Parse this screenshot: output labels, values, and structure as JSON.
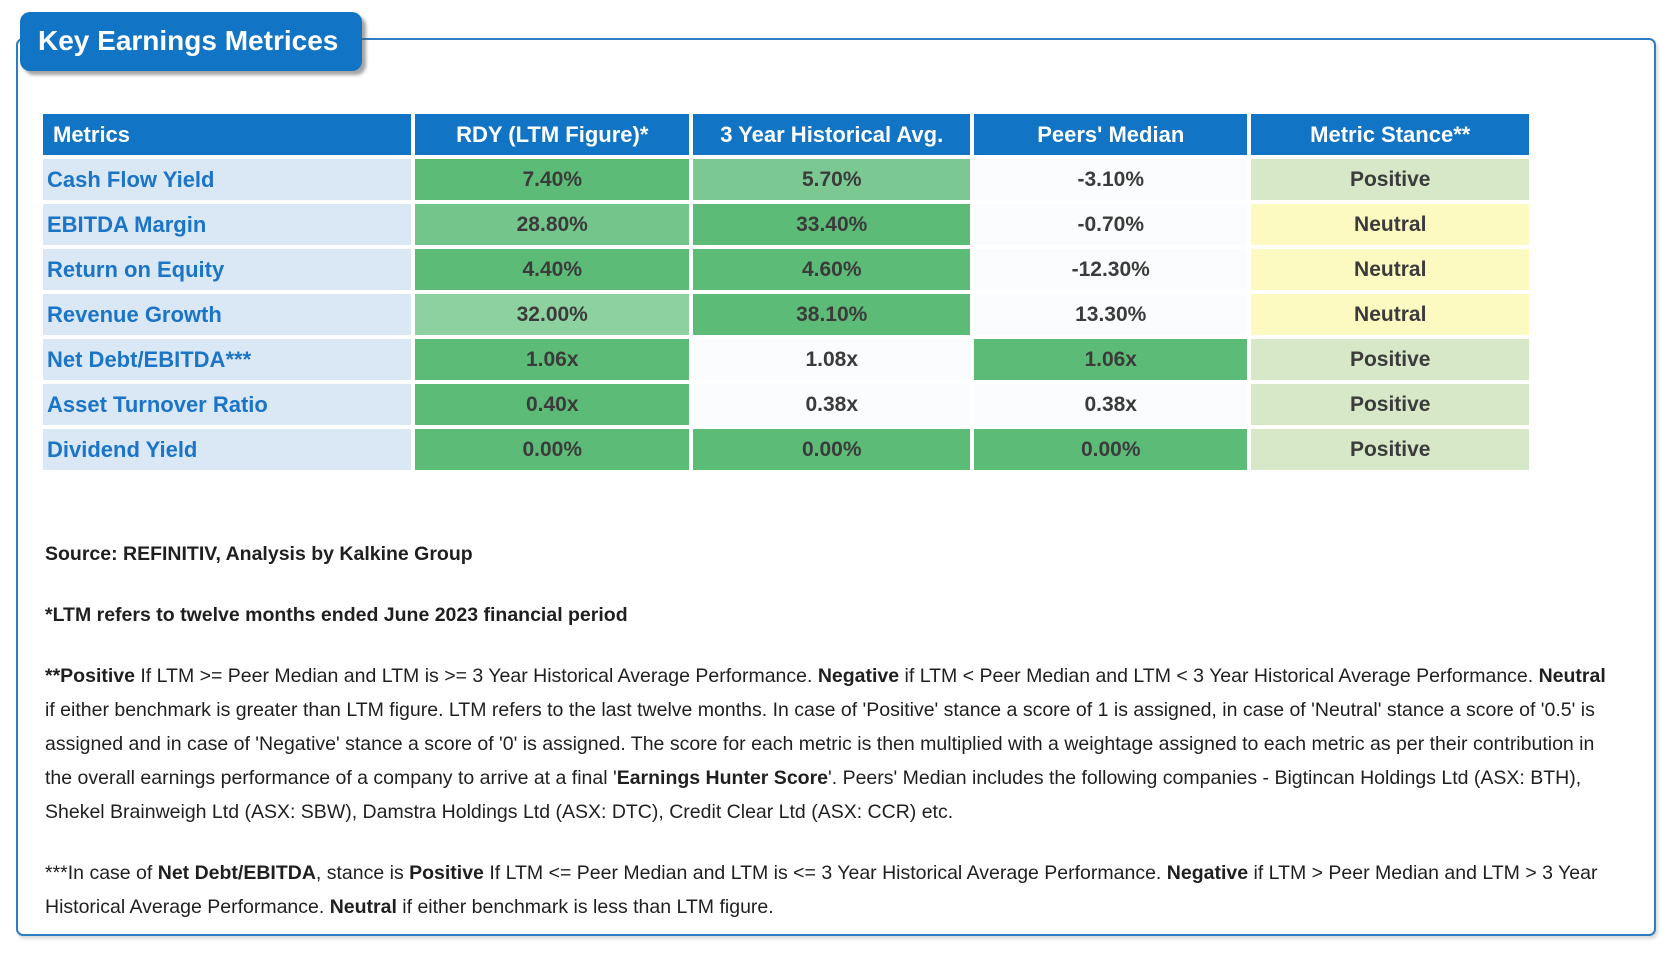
{
  "title": "Key Earnings Metrices",
  "colors": {
    "headerBg": "#1274c5",
    "labelBg": "#dae8f6",
    "labelText": "#1b74c6",
    "border": "#2e7cc1",
    "greenDark": "#5cbb76",
    "greenMid": "#74c58b",
    "greenLight": "#7cc893",
    "greenLighter": "#8ed1a1",
    "plain": "#fbfcfd",
    "stancePositive": "#d6e8c8",
    "stanceNeutral": "#fdfac1"
  },
  "table": {
    "headers": [
      "Metrics",
      "RDY (LTM Figure)*",
      "3 Year Historical Avg.",
      "Peers' Median",
      "Metric Stance**"
    ],
    "rows": [
      {
        "metric": "Cash Flow Yield",
        "cells": [
          {
            "text": "7.40%",
            "fill": "greenDark"
          },
          {
            "text": "5.70%",
            "fill": "greenLight"
          },
          {
            "text": "-3.10%",
            "fill": "plain"
          },
          {
            "text": "Positive",
            "fill": "stancePositive"
          }
        ]
      },
      {
        "metric": "EBITDA Margin",
        "cells": [
          {
            "text": "28.80%",
            "fill": "greenMid"
          },
          {
            "text": "33.40%",
            "fill": "greenDark"
          },
          {
            "text": "-0.70%",
            "fill": "plain"
          },
          {
            "text": "Neutral",
            "fill": "stanceNeutral"
          }
        ]
      },
      {
        "metric": "Return on Equity",
        "cells": [
          {
            "text": "4.40%",
            "fill": "greenDark"
          },
          {
            "text": "4.60%",
            "fill": "greenDark"
          },
          {
            "text": "-12.30%",
            "fill": "plain"
          },
          {
            "text": "Neutral",
            "fill": "stanceNeutral"
          }
        ]
      },
      {
        "metric": "Revenue Growth",
        "cells": [
          {
            "text": "32.00%",
            "fill": "greenLighter"
          },
          {
            "text": "38.10%",
            "fill": "greenDark"
          },
          {
            "text": "13.30%",
            "fill": "plain"
          },
          {
            "text": "Neutral",
            "fill": "stanceNeutral"
          }
        ]
      },
      {
        "metric": "Net Debt/EBITDA***",
        "cells": [
          {
            "text": "1.06x",
            "fill": "greenDark"
          },
          {
            "text": "1.08x",
            "fill": "plain"
          },
          {
            "text": "1.06x",
            "fill": "greenDark"
          },
          {
            "text": "Positive",
            "fill": "stancePositive"
          }
        ]
      },
      {
        "metric": "Asset Turnover Ratio",
        "cells": [
          {
            "text": "0.40x",
            "fill": "greenDark"
          },
          {
            "text": "0.38x",
            "fill": "plain"
          },
          {
            "text": "0.38x",
            "fill": "plain"
          },
          {
            "text": "Positive",
            "fill": "stancePositive"
          }
        ]
      },
      {
        "metric": "Dividend Yield",
        "cells": [
          {
            "text": "0.00%",
            "fill": "greenDark"
          },
          {
            "text": "0.00%",
            "fill": "greenDark"
          },
          {
            "text": "0.00%",
            "fill": "greenDark"
          },
          {
            "text": "Positive",
            "fill": "stancePositive"
          }
        ]
      }
    ]
  },
  "footnotes": {
    "source": [
      {
        "t": "Source: REFINITIV, Analysis by Kalkine Group",
        "b": true
      }
    ],
    "ltm": [
      {
        "t": "*LTM refers to twelve months ended June 2023 financial period",
        "b": true
      }
    ],
    "stance": [
      {
        "t": "**Positive",
        "b": true
      },
      {
        "t": " If LTM >= Peer Median and LTM is >= 3 Year Historical Average Performance. ",
        "b": false
      },
      {
        "t": "Negative",
        "b": true
      },
      {
        "t": " if LTM < Peer Median and LTM < 3 Year Historical Average Performance. ",
        "b": false
      },
      {
        "t": "Neutral",
        "b": true
      },
      {
        "t": " if either benchmark is greater than LTM figure. LTM refers to the last twelve months. In case of 'Positive' stance a score of 1 is assigned, in case of 'Neutral' stance a score of '0.5' is assigned and in case of 'Negative' stance a score of '0' is assigned. The score for each metric is then multiplied with a weightage assigned to each metric as per their contribution in the overall earnings performance of a company to arrive at a final '",
        "b": false
      },
      {
        "t": "Earnings Hunter Score",
        "b": true
      },
      {
        "t": "'. Peers' Median includes the following companies - Bigtincan Holdings Ltd (ASX: BTH), Shekel Brainweigh Ltd (ASX: SBW), Damstra Holdings Ltd (ASX: DTC), Credit Clear Ltd (ASX: CCR)  etc.",
        "b": false
      }
    ],
    "netdebt": [
      {
        "t": "***In case of ",
        "b": false
      },
      {
        "t": "Net Debt/EBITDA",
        "b": true
      },
      {
        "t": ", stance is ",
        "b": false
      },
      {
        "t": "Positive",
        "b": true
      },
      {
        "t": " If LTM <= Peer Median and LTM is <= 3 Year Historical Average Performance. ",
        "b": false
      },
      {
        "t": "Negative",
        "b": true
      },
      {
        "t": " if LTM > Peer Median and LTM > 3 Year Historical Average Performance. ",
        "b": false
      },
      {
        "t": "Neutral",
        "b": true
      },
      {
        "t": " if either benchmark is less than LTM figure.",
        "b": false
      }
    ]
  }
}
